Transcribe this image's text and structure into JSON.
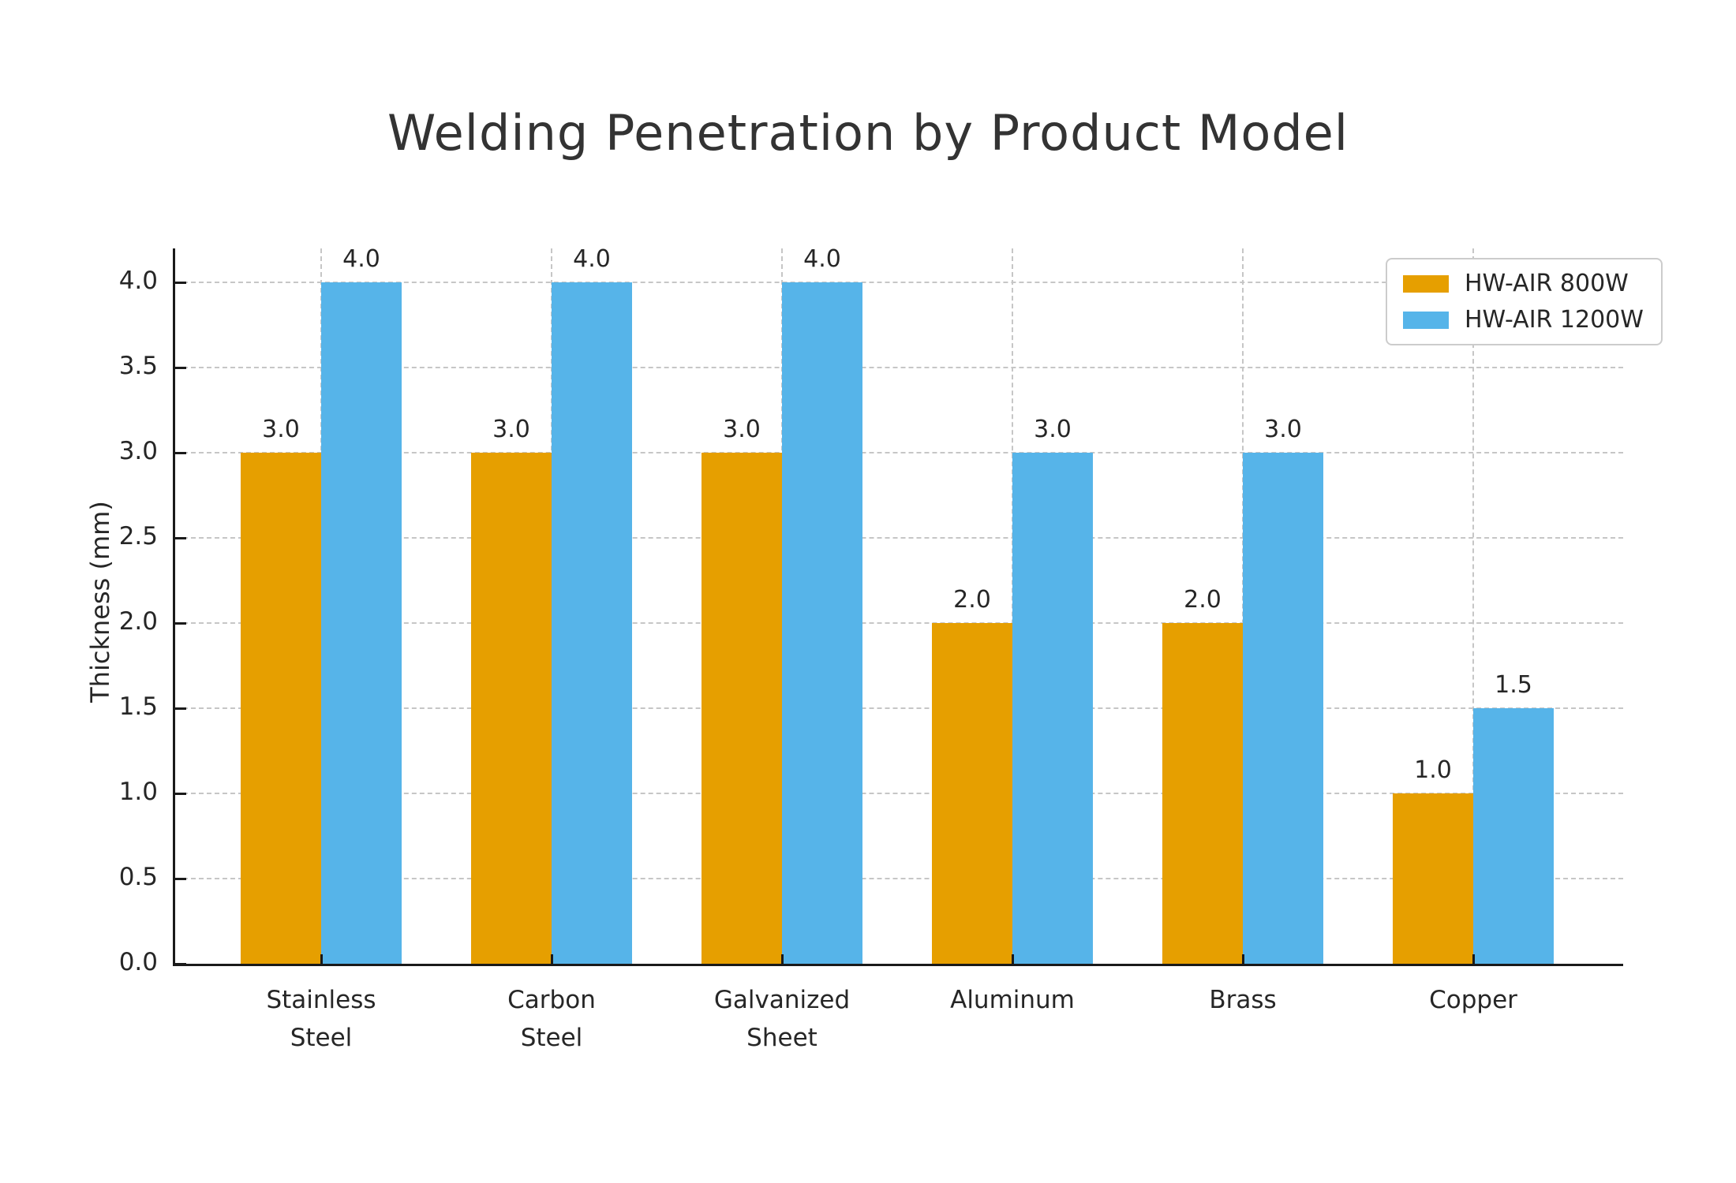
{
  "chart_data": {
    "type": "bar",
    "title": "Welding Penetration by Product Model",
    "xlabel": "",
    "ylabel": "Thickness (mm)",
    "categories": [
      "Stainless\nSteel",
      "Carbon\nSteel",
      "Galvanized\nSheet",
      "Aluminum",
      "Brass",
      "Copper"
    ],
    "series": [
      {
        "name": "HW-AIR 800W",
        "color": "#E69F00",
        "values": [
          3.0,
          3.0,
          3.0,
          2.0,
          2.0,
          1.0
        ],
        "bar_labels": [
          "3.0",
          "3.0",
          "3.0",
          "2.0",
          "2.0",
          "1.0"
        ]
      },
      {
        "name": "HW-AIR 1200W",
        "color": "#56B4E9",
        "values": [
          4.0,
          4.0,
          4.0,
          3.0,
          3.0,
          1.5
        ],
        "bar_labels": [
          "4.0",
          "4.0",
          "4.0",
          "3.0",
          "3.0",
          "1.5"
        ]
      }
    ],
    "ytick_labels": [
      "0.0",
      "0.5",
      "1.0",
      "1.5",
      "2.0",
      "2.5",
      "3.0",
      "3.5",
      "4.0"
    ],
    "yticks": [
      0,
      0.5,
      1.0,
      1.5,
      2.0,
      2.5,
      3.0,
      3.5,
      4.0
    ],
    "ylim": [
      0,
      4.2
    ],
    "grid": "dashed, horizontal and vertical at category centers",
    "grid_color": "#c6c6c6",
    "axis_color": "#1a1a1a",
    "text_color": "#262626",
    "title_color": "#333333",
    "background_color": "#ffffff",
    "legend_position": "upper right",
    "bar_width_fraction": 0.35
  }
}
